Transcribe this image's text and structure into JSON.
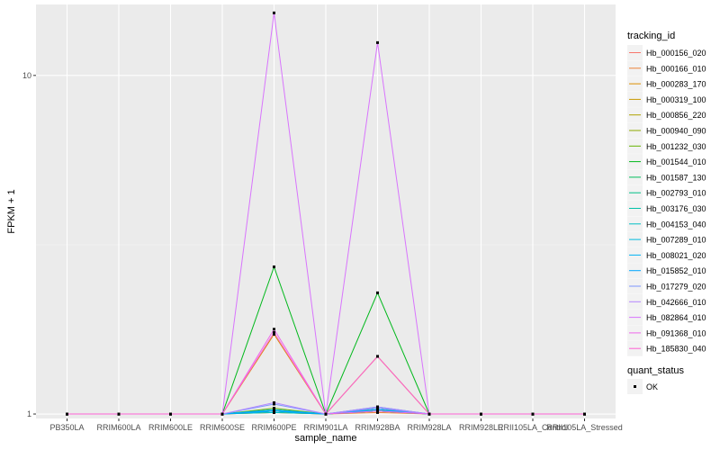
{
  "chart_data": {
    "type": "line",
    "xlabel": "sample_name",
    "ylabel": "FPKM + 1",
    "y_scale": "log",
    "ylim": [
      0.97,
      16.2
    ],
    "y_ticks": [
      {
        "value": 1,
        "label": "1"
      },
      {
        "value": 10,
        "label": "10"
      }
    ],
    "grid": true,
    "legend_position": "right",
    "categories": [
      "PB350LA",
      "RRIM600LA",
      "RRIM600LE",
      "RRIM600SE",
      "RRIM600PE",
      "RRIM901LA",
      "RRIM928BA",
      "RRIM928LA",
      "RRIM928LE",
      "RRII105LA_Control",
      "RRII105LA_Stressed"
    ],
    "color_legend": {
      "title": "tracking_id",
      "entries": [
        {
          "name": "Hb_000156_020",
          "color": "#F8766D"
        },
        {
          "name": "Hb_000166_010",
          "color": "#EC8239"
        },
        {
          "name": "Hb_000283_170",
          "color": "#DB8E00"
        },
        {
          "name": "Hb_000319_100",
          "color": "#C79800"
        },
        {
          "name": "Hb_000856_220",
          "color": "#AEA200"
        },
        {
          "name": "Hb_000940_090",
          "color": "#8FAA00"
        },
        {
          "name": "Hb_001232_030",
          "color": "#64B200"
        },
        {
          "name": "Hb_001544_010",
          "color": "#00B81B"
        },
        {
          "name": "Hb_001587_130",
          "color": "#00BD5C"
        },
        {
          "name": "Hb_002793_010",
          "color": "#00C085"
        },
        {
          "name": "Hb_003176_030",
          "color": "#00C1A7"
        },
        {
          "name": "Hb_004153_040",
          "color": "#00BFC4"
        },
        {
          "name": "Hb_007289_010",
          "color": "#00BADE"
        },
        {
          "name": "Hb_008021_020",
          "color": "#00B2F3"
        },
        {
          "name": "Hb_015852_010",
          "color": "#00A6FF"
        },
        {
          "name": "Hb_017279_020",
          "color": "#7C96FF"
        },
        {
          "name": "Hb_042666_010",
          "color": "#B385FF"
        },
        {
          "name": "Hb_082864_010",
          "color": "#D874FD"
        },
        {
          "name": "Hb_091368_010",
          "color": "#EF67EB"
        },
        {
          "name": "Hb_185830_040",
          "color": "#FD61D3"
        }
      ]
    },
    "shape_legend": {
      "title": "quant_status",
      "entries": [
        {
          "name": "OK"
        }
      ]
    },
    "series": [
      {
        "name": "Hb_000156_020",
        "values": [
          1,
          1,
          1,
          1,
          1.02,
          1,
          1.02,
          1,
          1,
          1,
          1
        ]
      },
      {
        "name": "Hb_000166_010",
        "values": [
          1,
          1,
          1,
          1,
          1.01,
          1,
          1.01,
          1,
          1,
          1,
          1
        ]
      },
      {
        "name": "Hb_000283_170",
        "values": [
          1,
          1,
          1,
          1,
          1.72,
          1,
          1.48,
          1,
          1,
          1,
          1
        ]
      },
      {
        "name": "Hb_000319_100",
        "values": [
          1,
          1,
          1,
          1,
          1.02,
          1,
          1.03,
          1,
          1,
          1,
          1
        ]
      },
      {
        "name": "Hb_000856_220",
        "values": [
          1,
          1,
          1,
          1,
          1.01,
          1,
          1.02,
          1,
          1,
          1,
          1
        ]
      },
      {
        "name": "Hb_000940_090",
        "values": [
          1,
          1,
          1,
          1,
          1.03,
          1,
          1.02,
          1,
          1,
          1,
          1
        ]
      },
      {
        "name": "Hb_001232_030",
        "values": [
          1,
          1,
          1,
          1,
          1.04,
          1,
          1.03,
          1,
          1,
          1,
          1
        ]
      },
      {
        "name": "Hb_001544_010",
        "values": [
          1,
          1,
          1,
          1,
          2.72,
          1,
          2.28,
          1,
          1,
          1,
          1
        ]
      },
      {
        "name": "Hb_001587_130",
        "values": [
          1,
          1,
          1,
          1,
          1.02,
          1,
          1.04,
          1,
          1,
          1,
          1
        ]
      },
      {
        "name": "Hb_002793_010",
        "values": [
          1,
          1,
          1,
          1,
          1.03,
          1,
          1.02,
          1,
          1,
          1,
          1
        ]
      },
      {
        "name": "Hb_003176_030",
        "values": [
          1,
          1,
          1,
          1,
          1.02,
          1,
          1.03,
          1,
          1,
          1,
          1
        ]
      },
      {
        "name": "Hb_004153_040",
        "values": [
          1,
          1,
          1,
          1,
          1.01,
          1,
          1.04,
          1,
          1,
          1,
          1
        ]
      },
      {
        "name": "Hb_007289_010",
        "values": [
          1,
          1,
          1,
          1,
          1.02,
          1,
          1.02,
          1,
          1,
          1,
          1
        ]
      },
      {
        "name": "Hb_008021_020",
        "values": [
          1,
          1,
          1,
          1,
          1.03,
          1,
          1.05,
          1,
          1,
          1,
          1
        ]
      },
      {
        "name": "Hb_015852_010",
        "values": [
          1,
          1,
          1,
          1,
          1.02,
          1,
          1.03,
          1,
          1,
          1,
          1
        ]
      },
      {
        "name": "Hb_017279_020",
        "values": [
          1,
          1,
          1,
          1,
          1.07,
          1,
          1.04,
          1,
          1,
          1,
          1
        ]
      },
      {
        "name": "Hb_042666_010",
        "values": [
          1,
          1,
          1,
          1,
          1.08,
          1,
          1.05,
          1,
          1,
          1,
          1
        ]
      },
      {
        "name": "Hb_082864_010",
        "values": [
          1,
          1,
          1,
          1,
          15.3,
          1,
          12.5,
          1,
          1,
          1,
          1
        ]
      },
      {
        "name": "Hb_091368_010",
        "values": [
          1,
          1,
          1,
          1,
          1.78,
          1,
          1.02,
          1,
          1,
          1,
          1
        ]
      },
      {
        "name": "Hb_185830_040",
        "values": [
          1,
          1,
          1,
          1,
          1.74,
          1,
          1.48,
          1,
          1,
          1,
          1
        ]
      }
    ]
  }
}
